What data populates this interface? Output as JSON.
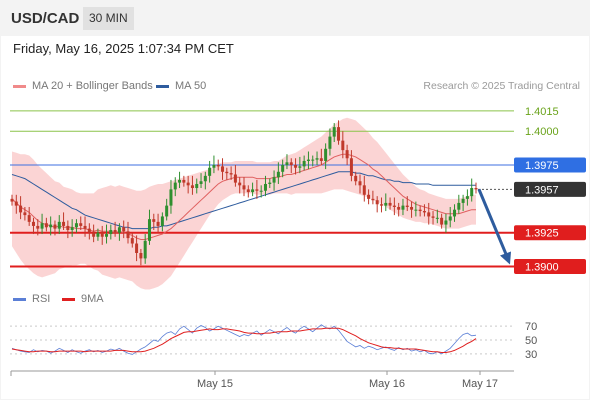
{
  "header": {
    "symbol": "USD/CAD",
    "timeframe": "30 MIN"
  },
  "datetime": "Friday, May 16, 2025 1:07:34 PM CET",
  "legend": {
    "ma20": {
      "label": "MA 20 + Bollinger Bands",
      "color": "#f08a8a"
    },
    "ma50": {
      "label": "MA 50",
      "color": "#2e5c9e"
    }
  },
  "credit": "Research © 2025 Trading Central",
  "rsi_legend": {
    "rsi": {
      "label": "RSI",
      "color": "#5b7fd6"
    },
    "ma": {
      "label": "9MA",
      "color": "#e02020"
    }
  },
  "colors": {
    "up": "#2f8f2f",
    "down": "#c0392b",
    "band": "#f9c6c6",
    "arrow": "#2e5c9e"
  },
  "chart_data": [
    {
      "type": "candlestick",
      "y_range": [
        1.3893,
        1.4026
      ],
      "x_labels": [
        "May 15",
        "May 16",
        "May 17"
      ],
      "levels": [
        {
          "value": "1.4015",
          "kind": "target",
          "color": "#8bc34a",
          "label_color": "#6aa31b"
        },
        {
          "value": "1.4000",
          "kind": "target",
          "color": "#8bc34a",
          "label_color": "#6aa31b"
        },
        {
          "value": "1.3975",
          "kind": "resistance",
          "color": "#3d6fe0",
          "label_bg": "#2f6fe3"
        },
        {
          "value": "1.3957",
          "kind": "last",
          "color": "#555555",
          "label_bg": "#333333"
        },
        {
          "value": "1.3925",
          "kind": "support",
          "color": "#e01e1e",
          "label_bg": "#e01e1e"
        },
        {
          "value": "1.3900",
          "kind": "support",
          "color": "#e01e1e",
          "label_bg": "#e01e1e"
        }
      ],
      "close": [
        1.3948,
        1.3945,
        1.394,
        1.3938,
        1.3933,
        1.393,
        1.3928,
        1.3932,
        1.3929,
        1.3931,
        1.3928,
        1.3933,
        1.393,
        1.3927,
        1.3929,
        1.3932,
        1.393,
        1.3928,
        1.3925,
        1.3922,
        1.3925,
        1.3922,
        1.3924,
        1.3927,
        1.3925,
        1.3929,
        1.3926,
        1.3921,
        1.3917,
        1.391,
        1.3906,
        1.3919,
        1.3935,
        1.3933,
        1.393,
        1.3937,
        1.3945,
        1.3957,
        1.3962,
        1.3964,
        1.3962,
        1.396,
        1.3958,
        1.3961,
        1.3963,
        1.3967,
        1.3973,
        1.3975,
        1.3974,
        1.397,
        1.3969,
        1.3968,
        1.3962,
        1.396,
        1.3957,
        1.3955,
        1.3957,
        1.3956,
        1.3956,
        1.3961,
        1.3962,
        1.3966,
        1.397,
        1.3975,
        1.3977,
        1.3975,
        1.3973,
        1.3974,
        1.3978,
        1.3979,
        1.3979,
        1.398,
        1.3978,
        1.3987,
        1.3996,
        1.4003,
        1.3993,
        1.3986,
        1.398,
        1.3967,
        1.3963,
        1.396,
        1.3953,
        1.395,
        1.3949,
        1.3946,
        1.3945,
        1.3947,
        1.3945,
        1.3944,
        1.3942,
        1.3945,
        1.3944,
        1.3942,
        1.3942,
        1.3941,
        1.394,
        1.3937,
        1.3936,
        1.3936,
        1.3931,
        1.3934,
        1.3937,
        1.3942,
        1.3947,
        1.395,
        1.3952,
        1.3958,
        1.3957
      ],
      "ma20": [
        1.395,
        1.3947,
        1.3944,
        1.3942,
        1.394,
        1.3937,
        1.3934,
        1.3932,
        1.3931,
        1.393,
        1.3929,
        1.393,
        1.3929,
        1.3929,
        1.3929,
        1.3928,
        1.3928,
        1.3928,
        1.3927,
        1.3926,
        1.3927,
        1.3926,
        1.3926,
        1.3926,
        1.3925,
        1.3926,
        1.3925,
        1.3924,
        1.3923,
        1.3921,
        1.392,
        1.392,
        1.3921,
        1.3922,
        1.3923,
        1.3924,
        1.3926,
        1.3928,
        1.3931,
        1.3934,
        1.3937,
        1.394,
        1.3943,
        1.3946,
        1.3949,
        1.3952,
        1.3955,
        1.3958,
        1.3961,
        1.3963,
        1.3964,
        1.3965,
        1.3966,
        1.3966,
        1.3966,
        1.3966,
        1.3966,
        1.3965,
        1.3965,
        1.3965,
        1.3965,
        1.3966,
        1.3966,
        1.3967,
        1.3968,
        1.3968,
        1.3969,
        1.397,
        1.3971,
        1.3972,
        1.3973,
        1.3974,
        1.3975,
        1.3977,
        1.3979,
        1.3981,
        1.3982,
        1.3983,
        1.3983,
        1.3982,
        1.3981,
        1.3979,
        1.3977,
        1.3975,
        1.3972,
        1.397,
        1.3967,
        1.3964,
        1.3961,
        1.3958,
        1.3955,
        1.3952,
        1.395,
        1.3948,
        1.3946,
        1.3945,
        1.3944,
        1.3943,
        1.3942,
        1.3941,
        1.394,
        1.3939,
        1.3939,
        1.3939,
        1.3939,
        1.394,
        1.3941,
        1.3942,
        1.3942
      ],
      "ma50": [
        1.3968,
        1.3967,
        1.3966,
        1.3965,
        1.3963,
        1.3961,
        1.3959,
        1.3957,
        1.3955,
        1.3953,
        1.3951,
        1.3949,
        1.3947,
        1.3945,
        1.3943,
        1.3942,
        1.394,
        1.3938,
        1.3937,
        1.3936,
        1.3935,
        1.3934,
        1.3933,
        1.3932,
        1.3931,
        1.393,
        1.3929,
        1.3929,
        1.3928,
        1.3928,
        1.3928,
        1.3928,
        1.3928,
        1.3929,
        1.3929,
        1.393,
        1.393,
        1.3931,
        1.3932,
        1.3933,
        1.3934,
        1.3935,
        1.3936,
        1.3937,
        1.3938,
        1.3939,
        1.394,
        1.3941,
        1.3942,
        1.3943,
        1.3944,
        1.3945,
        1.3946,
        1.3947,
        1.3948,
        1.3949,
        1.395,
        1.3951,
        1.3952,
        1.3953,
        1.3954,
        1.3955,
        1.3956,
        1.3957,
        1.3958,
        1.3959,
        1.396,
        1.3961,
        1.3962,
        1.3963,
        1.3964,
        1.3965,
        1.3966,
        1.3967,
        1.3968,
        1.3969,
        1.397,
        1.397,
        1.397,
        1.397,
        1.3969,
        1.3969,
        1.3968,
        1.3967,
        1.3967,
        1.3966,
        1.3965,
        1.3964,
        1.3964,
        1.3963,
        1.3963,
        1.3962,
        1.3962,
        1.3962,
        1.3961,
        1.3961,
        1.3961,
        1.3961,
        1.396,
        1.396,
        1.396,
        1.396,
        1.396,
        1.396,
        1.396,
        1.396,
        1.396,
        1.396,
        1.396
      ],
      "bb_width": [
        0.0035,
        0.0037,
        0.0039,
        0.0041,
        0.0042,
        0.0042,
        0.0041,
        0.004,
        0.0038,
        0.0036,
        0.0034,
        0.0032,
        0.003,
        0.0029,
        0.0028,
        0.0027,
        0.0026,
        0.0026,
        0.0027,
        0.0028,
        0.003,
        0.0032,
        0.0033,
        0.0034,
        0.0034,
        0.0034,
        0.0034,
        0.0034,
        0.0034,
        0.0035,
        0.0036,
        0.0037,
        0.0038,
        0.0038,
        0.0038,
        0.0037,
        0.0036,
        0.0035,
        0.0033,
        0.0031,
        0.0029,
        0.0027,
        0.0025,
        0.0023,
        0.0021,
        0.0019,
        0.0017,
        0.0016,
        0.0015,
        0.0014,
        0.0013,
        0.0012,
        0.0012,
        0.0012,
        0.0012,
        0.0012,
        0.0012,
        0.0012,
        0.0012,
        0.0012,
        0.0012,
        0.0012,
        0.0012,
        0.0013,
        0.0014,
        0.0015,
        0.0015,
        0.0016,
        0.0017,
        0.0018,
        0.0019,
        0.002,
        0.0021,
        0.0022,
        0.0023,
        0.0024,
        0.0025,
        0.0026,
        0.0027,
        0.0027,
        0.0027,
        0.0026,
        0.0025,
        0.0024,
        0.0023,
        0.0022,
        0.0021,
        0.002,
        0.0019,
        0.0018,
        0.0017,
        0.0016,
        0.0015,
        0.0014,
        0.0013,
        0.0012,
        0.0012,
        0.0011,
        0.0011,
        0.0011,
        0.0011,
        0.0011,
        0.0011,
        0.0011,
        0.0011,
        0.0011,
        0.0011,
        0.0011,
        0.0011
      ],
      "forecast": {
        "from": "1.3957",
        "to": "1.3900"
      }
    },
    {
      "type": "line",
      "name": "RSI",
      "y_range": [
        24,
        76
      ],
      "y_ticks": [
        "70",
        "50",
        "30"
      ],
      "x_labels": [
        "May 15",
        "May 16",
        "May 17"
      ],
      "rsi": [
        38,
        36,
        34,
        33,
        32,
        36,
        33,
        35,
        34,
        31,
        34,
        38,
        35,
        32,
        36,
        33,
        31,
        34,
        36,
        33,
        35,
        32,
        34,
        37,
        35,
        38,
        34,
        31,
        29,
        33,
        37,
        40,
        45,
        50,
        48,
        55,
        60,
        62,
        58,
        66,
        70,
        65,
        60,
        67,
        71,
        68,
        63,
        66,
        70,
        67,
        64,
        61,
        58,
        55,
        58,
        56,
        60,
        63,
        57,
        61,
        65,
        62,
        59,
        64,
        68,
        63,
        60,
        66,
        70,
        66,
        62,
        67,
        72,
        68,
        66,
        70,
        64,
        56,
        48,
        44,
        40,
        42,
        38,
        41,
        39,
        36,
        38,
        40,
        37,
        35,
        39,
        36,
        38,
        34,
        36,
        33,
        35,
        31,
        30,
        33,
        30,
        34,
        38,
        45,
        52,
        58,
        60,
        56,
        57
      ],
      "ma": [
        37,
        36,
        35,
        34,
        33,
        33,
        34,
        34,
        34,
        33,
        33,
        34,
        34,
        34,
        34,
        34,
        34,
        33,
        34,
        34,
        34,
        34,
        34,
        34,
        35,
        35,
        35,
        34,
        33,
        33,
        33,
        34,
        36,
        38,
        41,
        44,
        48,
        52,
        55,
        58,
        61,
        62,
        62,
        63,
        64,
        65,
        66,
        65,
        65,
        66,
        66,
        65,
        64,
        63,
        61,
        60,
        60,
        59,
        59,
        60,
        60,
        61,
        62,
        62,
        62,
        63,
        63,
        63,
        64,
        65,
        66,
        66,
        66,
        67,
        67,
        67,
        67,
        65,
        62,
        59,
        56,
        52,
        49,
        46,
        44,
        42,
        40,
        39,
        39,
        38,
        38,
        37,
        37,
        37,
        37,
        36,
        35,
        34,
        33,
        33,
        32,
        32,
        33,
        35,
        38,
        41,
        45,
        48,
        52
      ]
    }
  ]
}
